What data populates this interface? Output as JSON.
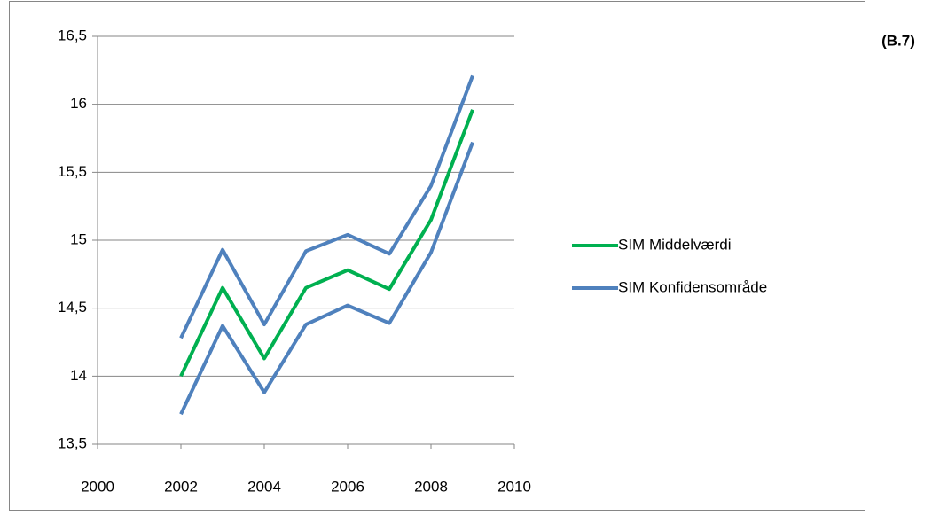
{
  "chart_data": {
    "type": "line",
    "annotation": "(B.7)",
    "x": [
      2002,
      2003,
      2004,
      2005,
      2006,
      2007,
      2008,
      2009
    ],
    "series": [
      {
        "name": "SIM Middelværdi",
        "color": "#00b050",
        "values": [
          14.0,
          14.65,
          14.13,
          14.65,
          14.78,
          14.64,
          15.15,
          15.96
        ]
      },
      {
        "name": "SIM Konfidensområde",
        "color": "#4f81bd",
        "upper": [
          14.28,
          14.93,
          14.38,
          14.92,
          15.04,
          14.9,
          15.4,
          16.21
        ],
        "lower": [
          13.72,
          14.37,
          13.88,
          14.38,
          14.52,
          14.39,
          14.91,
          15.72
        ]
      }
    ],
    "xlim": [
      2000,
      2010
    ],
    "xticks": [
      2000,
      2002,
      2004,
      2006,
      2008,
      2010
    ],
    "ylim": [
      13.5,
      16.5
    ],
    "yticks": [
      {
        "value": 13.5,
        "label": "13,5"
      },
      14,
      {
        "value": 14.5,
        "label": "14,5"
      },
      15,
      {
        "value": 15.5,
        "label": "15,5"
      },
      16,
      {
        "value": 16.5,
        "label": "16,5"
      }
    ],
    "grid": true
  }
}
